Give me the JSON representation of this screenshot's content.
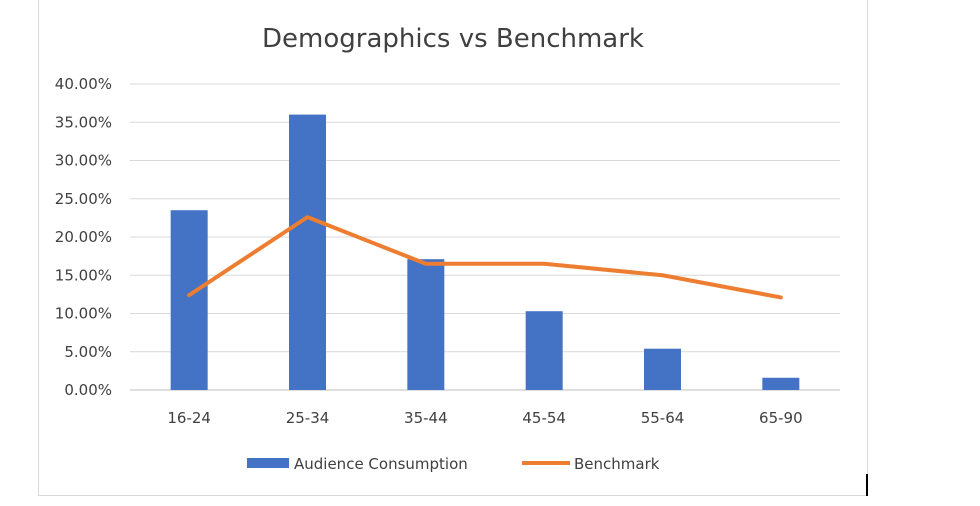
{
  "chart_data": {
    "type": "bar",
    "title": "Demographics vs Benchmark",
    "xlabel": "",
    "ylabel": "",
    "categories": [
      "16-24",
      "25-34",
      "35-44",
      "45-54",
      "55-64",
      "65-90"
    ],
    "series": [
      {
        "name": "Audience Consumption",
        "type": "bar",
        "color": "#4472c4",
        "values": [
          0.235,
          0.36,
          0.171,
          0.103,
          0.054,
          0.016
        ]
      },
      {
        "name": "Benchmark",
        "type": "line",
        "color": "#ed7d31",
        "values": [
          0.124,
          0.226,
          0.165,
          0.165,
          0.15,
          0.121
        ]
      }
    ],
    "ylim": [
      0,
      0.4
    ],
    "yticks": [
      0,
      0.05,
      0.1,
      0.15,
      0.2,
      0.25,
      0.3,
      0.35,
      0.4
    ],
    "ytick_labels": [
      "0.00%",
      "5.00%",
      "10.00%",
      "15.00%",
      "20.00%",
      "25.00%",
      "30.00%",
      "35.00%",
      "40.00%"
    ],
    "grid": true,
    "legend": "bottom"
  }
}
